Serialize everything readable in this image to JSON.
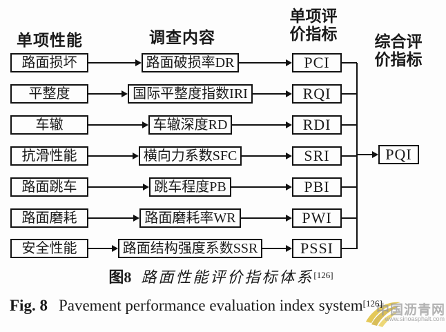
{
  "headers": {
    "performance": "单项性能",
    "survey": "调查内容",
    "single_index_line1": "单项评",
    "single_index_line2": "价指标",
    "composite_index_line1": "综合评",
    "composite_index_line2": "价指标"
  },
  "rows": [
    {
      "performance": "路面损坏",
      "survey": "路面破损率DR",
      "index": "PCI"
    },
    {
      "performance": "平整度",
      "survey": "国际平整度指数IRI",
      "index": "RQI"
    },
    {
      "performance": "车辙",
      "survey": "车辙深度RD",
      "index": "RDI"
    },
    {
      "performance": "抗滑性能",
      "survey": "横向力系数SFC",
      "index": "SRI"
    },
    {
      "performance": "路面跳车",
      "survey": "跳车程度PB",
      "index": "PBI"
    },
    {
      "performance": "路面磨耗",
      "survey": "路面磨耗率WR",
      "index": "PWI"
    },
    {
      "performance": "安全性能",
      "survey": "路面结构强度系数SSR",
      "index": "PSSI"
    }
  ],
  "composite": {
    "label": "PQI"
  },
  "caption_zh": {
    "label": "图8",
    "text": "路面性能评价指标体系",
    "ref": "[126]"
  },
  "caption_en": {
    "label": "Fig. 8",
    "text": "Pavement performance evaluation index system",
    "ref": "[126]"
  },
  "watermark": {
    "name": "中国沥青网",
    "url": "www.sinoasphalt.com",
    "logo_color": "#dfbe3a"
  }
}
